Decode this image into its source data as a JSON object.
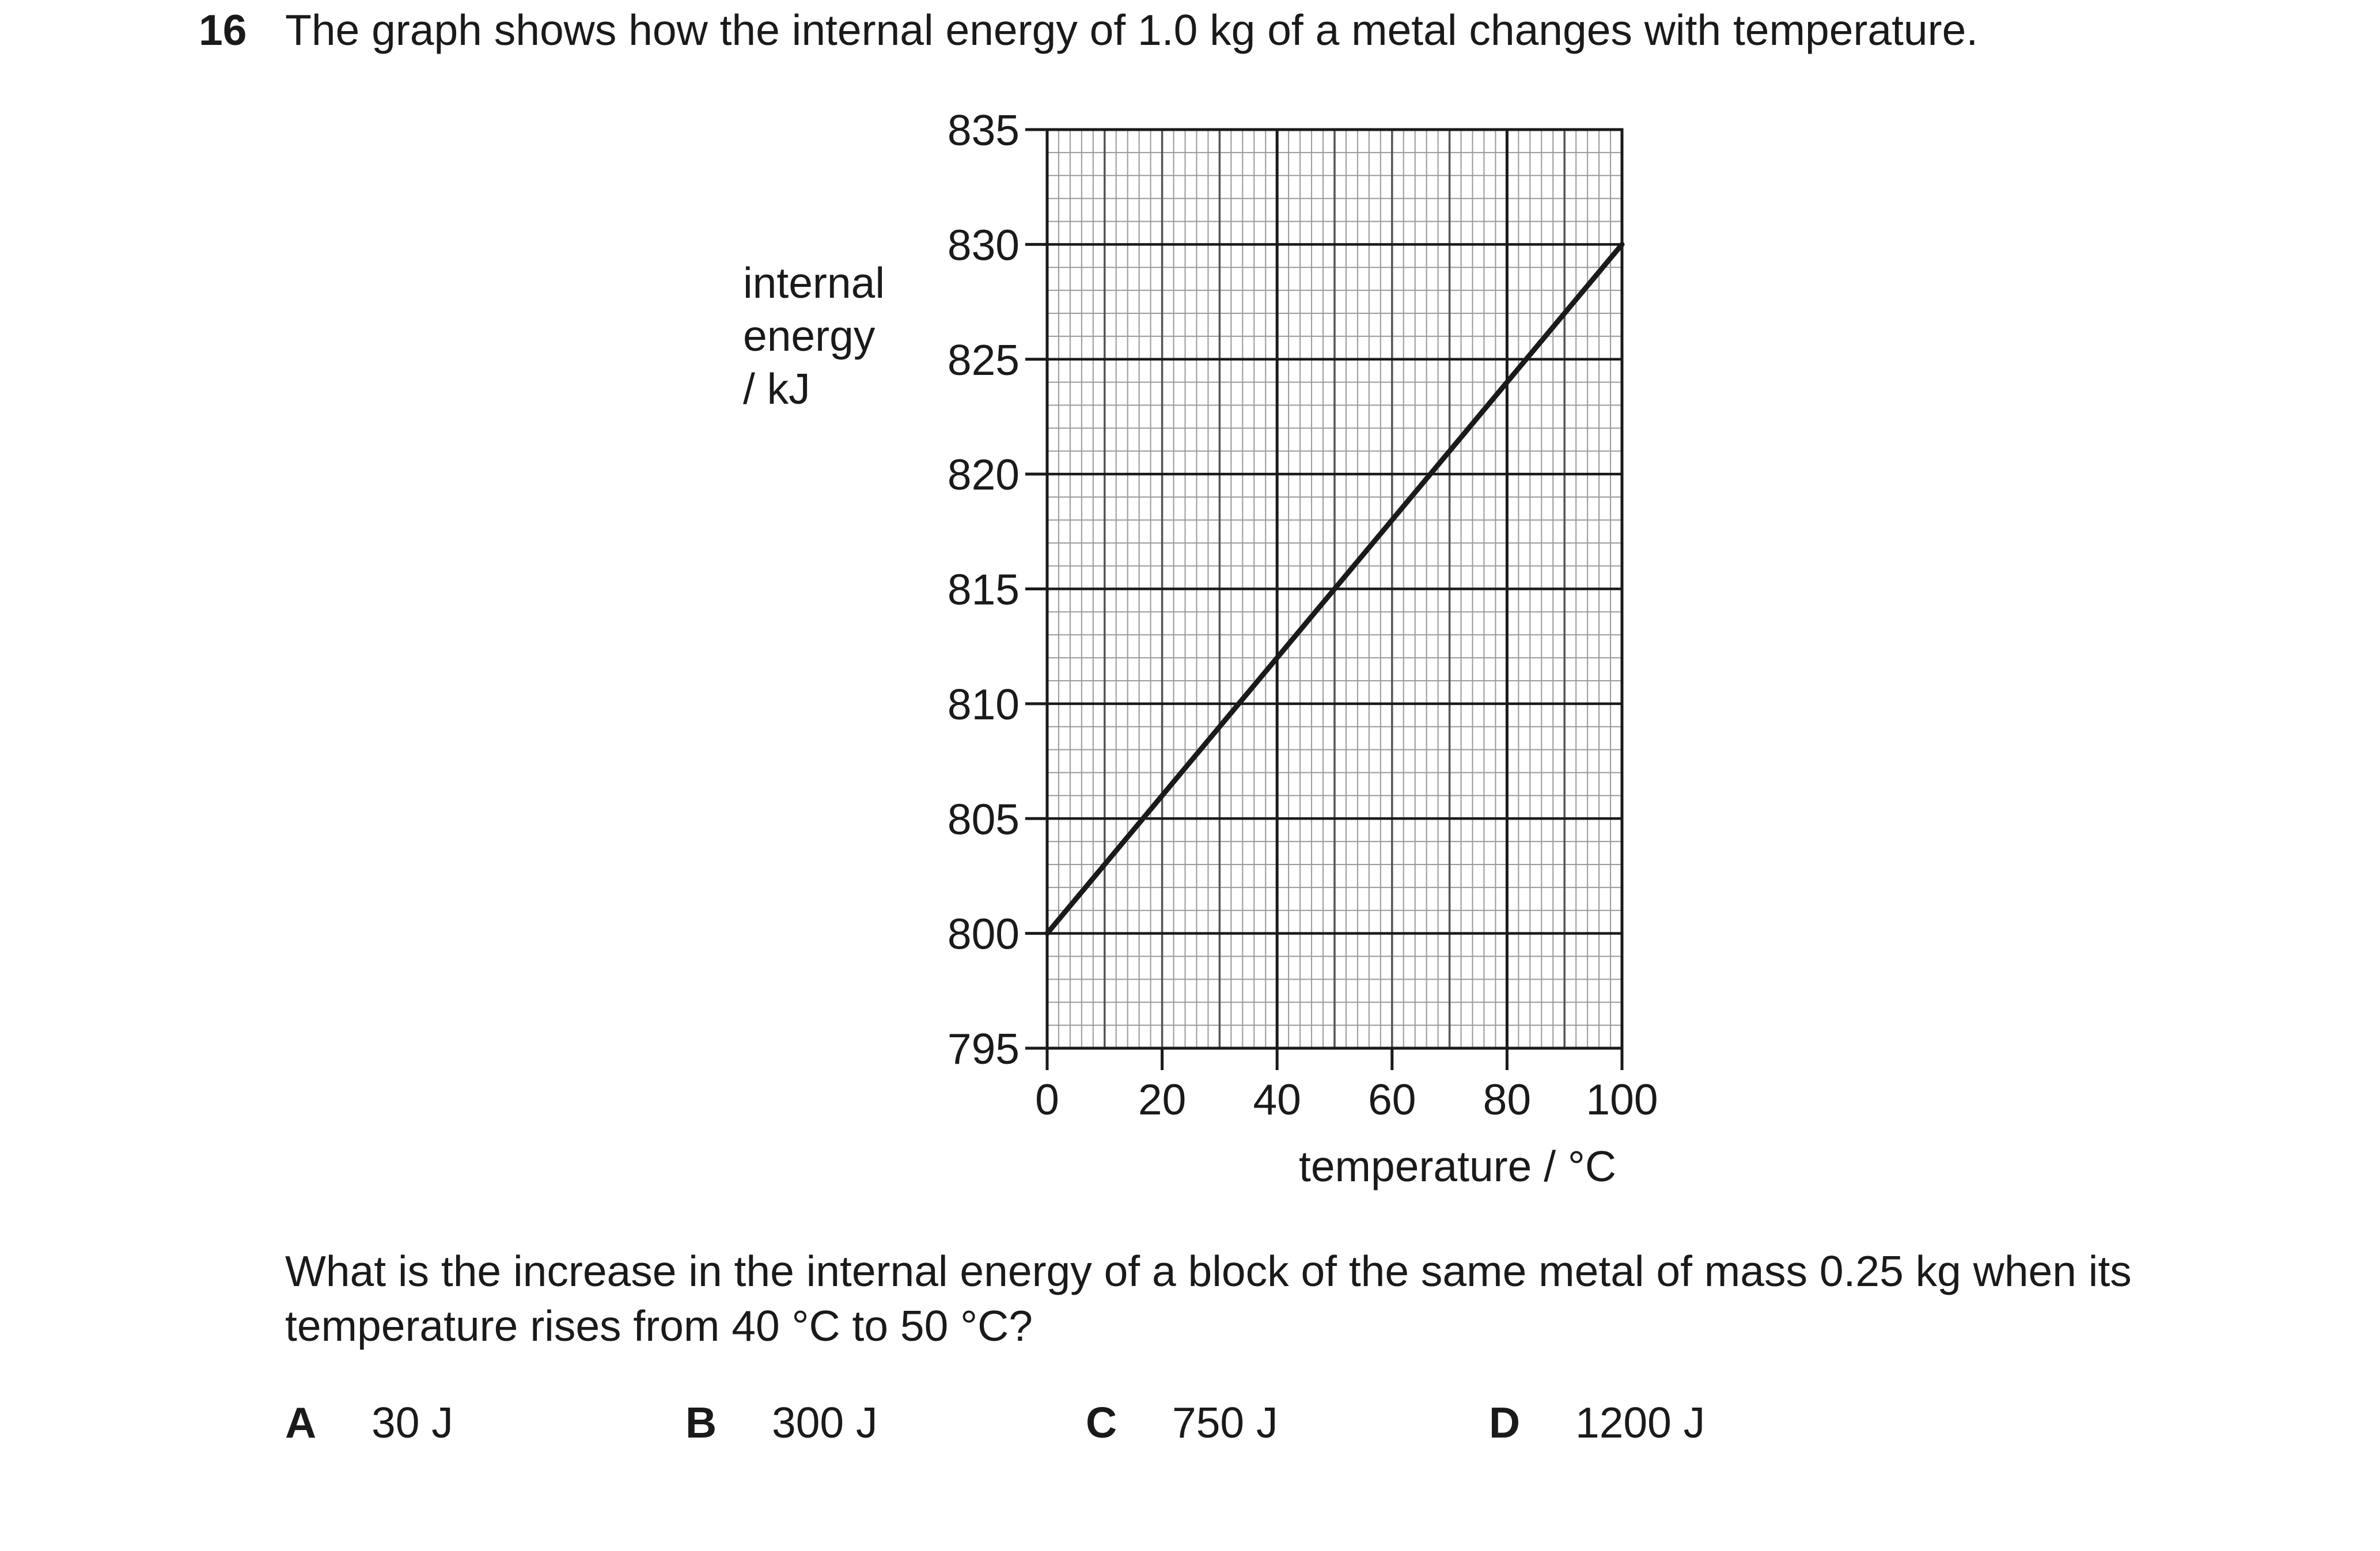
{
  "question": {
    "number": "16",
    "stem": "The graph shows how the internal energy of 1.0 kg of a metal changes with temperature.",
    "prompt": "What is the increase in the internal energy of a block of the same metal of mass 0.25 kg when its temperature rises from 40 °C to 50 °C?",
    "options": [
      {
        "letter": "A",
        "text": "30 J"
      },
      {
        "letter": "B",
        "text": "300 J"
      },
      {
        "letter": "C",
        "text": "750 J"
      },
      {
        "letter": "D",
        "text": "1200 J"
      }
    ]
  },
  "chart_data": {
    "type": "line",
    "xlabel": "temperature / °C",
    "ylabel_lines": [
      "internal",
      "energy",
      "/ kJ"
    ],
    "xlim": [
      0,
      100
    ],
    "ylim": [
      795,
      835
    ],
    "xticks": [
      0,
      20,
      40,
      60,
      80,
      100
    ],
    "yticks": [
      795,
      800,
      805,
      810,
      815,
      820,
      825,
      830,
      835
    ],
    "grid": true,
    "series": [
      {
        "x": [
          0,
          100
        ],
        "y": [
          800,
          830
        ]
      }
    ]
  }
}
